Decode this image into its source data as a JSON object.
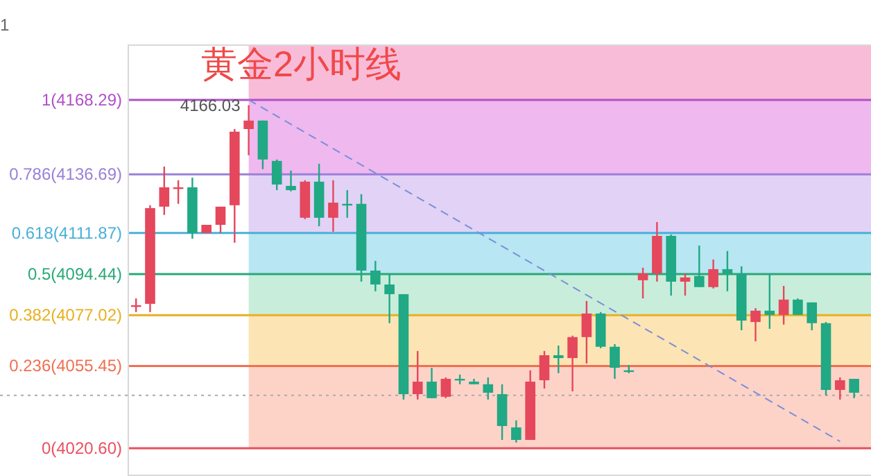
{
  "chart_data": {
    "type": "candlestick",
    "title": "黄金2小时线",
    "categories": [
      null,
      null,
      null,
      null,
      null,
      null,
      null,
      null,
      null,
      null,
      null,
      null,
      null,
      null,
      null,
      null,
      null,
      null,
      null,
      null,
      null,
      null,
      null,
      null,
      null,
      null,
      null,
      null,
      null,
      null,
      null,
      null,
      null,
      null,
      null,
      null,
      null,
      null,
      null,
      null,
      null,
      null,
      null,
      null,
      null,
      null,
      null,
      null,
      null,
      null,
      null,
      null
    ],
    "ohlc": [
      [
        4081.2,
        4084.1,
        4078.3,
        4081.2
      ],
      [
        4081.8,
        4123.6,
        4078.3,
        4122.4
      ],
      [
        4123.0,
        4140.0,
        4119.5,
        4131.2
      ],
      [
        4131.2,
        4134.2,
        4124.2,
        4131.2
      ],
      [
        4131.2,
        4135.3,
        4109.4,
        4111.8
      ],
      [
        4111.8,
        4115.3,
        4111.8,
        4115.3
      ],
      [
        4115.3,
        4123.0,
        4111.8,
        4123.0
      ],
      [
        4123.6,
        4155.9,
        4107.7,
        4154.8
      ],
      [
        4155.9,
        4166.03,
        4144.8,
        4159.5
      ],
      [
        4159.5,
        4159.5,
        4138.9,
        4143.0
      ],
      [
        4142.4,
        4143.0,
        4130.0,
        4132.4
      ],
      [
        4131.8,
        4138.3,
        4129.5,
        4130.0
      ],
      [
        4118.3,
        4134.2,
        4117.7,
        4133.6
      ],
      [
        4133.6,
        4141.2,
        4114.7,
        4118.3
      ],
      [
        4118.3,
        4134.2,
        4112.4,
        4124.7
      ],
      [
        4124.2,
        4130.0,
        4118.3,
        4124.2
      ],
      [
        4124.2,
        4128.3,
        4091.2,
        4095.9
      ],
      [
        4095.9,
        4100.0,
        4087.1,
        4090.0
      ],
      [
        4090.0,
        4094.7,
        4073.6,
        4085.9
      ],
      [
        4085.9,
        4085.9,
        4041.2,
        4043.5
      ],
      [
        4043.5,
        4061.8,
        4041.2,
        4048.8
      ],
      [
        4048.8,
        4054.7,
        4041.8,
        4041.8
      ],
      [
        4042.4,
        4050.6,
        4041.8,
        4050.0
      ],
      [
        4050.0,
        4051.8,
        4047.7,
        4050.0
      ],
      [
        4048.8,
        4050.0,
        4047.7,
        4047.7
      ],
      [
        4047.7,
        4050.6,
        4041.2,
        4044.1
      ],
      [
        4043.5,
        4047.7,
        4024.1,
        4030.0
      ],
      [
        4029.4,
        4032.4,
        4023.0,
        4024.1
      ],
      [
        4024.1,
        4053.6,
        4024.1,
        4048.8
      ],
      [
        4049.4,
        4061.8,
        4045.9,
        4060.0
      ],
      [
        4060.0,
        4064.1,
        4052.4,
        4058.8
      ],
      [
        4058.8,
        4068.3,
        4044.7,
        4067.7
      ],
      [
        4067.7,
        4083.0,
        4056.5,
        4077.7
      ],
      [
        4077.7,
        4078.3,
        4063.0,
        4063.6
      ],
      [
        4063.6,
        4064.7,
        4050.0,
        4054.7
      ],
      [
        4053.6,
        4055.9,
        4052.4,
        4053.6
      ],
      [
        4091.8,
        4097.1,
        4084.1,
        4094.7
      ],
      [
        4094.7,
        4116.5,
        4091.2,
        4110.6
      ],
      [
        4110.6,
        4111.2,
        4085.3,
        4091.2
      ],
      [
        4091.2,
        4094.7,
        4085.3,
        4093.0
      ],
      [
        4093.6,
        4106.5,
        4088.9,
        4088.9
      ],
      [
        4088.9,
        4100.6,
        4088.3,
        4096.5
      ],
      [
        4096.5,
        4104.2,
        4087.1,
        4094.7
      ],
      [
        4094.7,
        4097.7,
        4070.6,
        4074.7
      ],
      [
        4074.1,
        4080.0,
        4065.9,
        4078.9
      ],
      [
        4078.9,
        4094.7,
        4071.2,
        4077.1
      ],
      [
        4077.1,
        4089.4,
        4073.0,
        4083.6
      ],
      [
        4083.6,
        4084.1,
        4077.1,
        4077.1
      ],
      [
        4082.4,
        4082.4,
        4070.6,
        4073.6
      ],
      [
        4073.6,
        4074.1,
        4043.0,
        4045.3
      ],
      [
        4045.3,
        4050.6,
        4041.2,
        4049.4
      ],
      [
        4050.0,
        4050.0,
        4041.8,
        4044.1
      ]
    ],
    "colors": [
      "#e5475c",
      "#e5475c",
      "#e5475c",
      "#e5475c",
      "#21a884",
      "#e5475c",
      "#e5475c",
      "#e5475c",
      "#e5475c",
      "#21a884",
      "#21a884",
      "#21a884",
      "#e5475c",
      "#21a884",
      "#e5475c",
      "#21a884",
      "#21a884",
      "#21a884",
      "#21a884",
      "#21a884",
      "#e5475c",
      "#21a884",
      "#e5475c",
      "#21a884",
      "#21a884",
      "#21a884",
      "#21a884",
      "#21a884",
      "#e5475c",
      "#e5475c",
      "#21a884",
      "#e5475c",
      "#e5475c",
      "#21a884",
      "#21a884",
      "#21a884",
      "#e5475c",
      "#e5475c",
      "#21a884",
      "#e5475c",
      "#21a884",
      "#e5475c",
      "#21a884",
      "#21a884",
      "#e5475c",
      "#21a884",
      "#e5475c",
      "#21a884",
      "#21a884",
      "#21a884",
      "#e5475c",
      "#21a884"
    ],
    "series": [
      {
        "type": "line",
        "values": [
          null,
          null,
          null,
          null,
          null,
          null,
          null,
          null,
          4168.29,
          null,
          null,
          null,
          null,
          null,
          null,
          null,
          null,
          null,
          null,
          null,
          null,
          null,
          null,
          null,
          null,
          null,
          null,
          null,
          null,
          null,
          null,
          null,
          null,
          null,
          null,
          null,
          null,
          null,
          null,
          null,
          null,
          null,
          null,
          null,
          null,
          null,
          null,
          null,
          null,
          null,
          4023.5,
          null
        ],
        "color": "#7b8fd8",
        "line_style": "dashed"
      }
    ],
    "ylim": [
      4008.8,
      4191.8
    ],
    "tick_labels": false,
    "ref_lines": [
      {
        "axis": "y",
        "value": 4168.29,
        "label": "1(4168.29)",
        "color": "#b050c8"
      },
      {
        "axis": "y",
        "value": 4136.69,
        "label": "0.786(4136.69)",
        "color": "#9a80d8"
      },
      {
        "axis": "y",
        "value": 4111.87,
        "label": "0.618(4111.87)",
        "color": "#4ab0d8"
      },
      {
        "axis": "y",
        "value": 4094.44,
        "label": "0.5(4094.44)",
        "color": "#2aa878"
      },
      {
        "axis": "y",
        "value": 4077.02,
        "label": "0.382(4077.02)",
        "color": "#e8b020"
      },
      {
        "axis": "y",
        "value": 4055.45,
        "label": "0.236(4055.45)",
        "color": "#f07050"
      },
      {
        "axis": "y",
        "value": 4020.6,
        "label": "0(4020.60)",
        "color": "#e85060"
      },
      {
        "axis": "y",
        "value": 4043.0,
        "color": "#aaaaaa",
        "line_style": "dotted"
      }
    ],
    "bands": [
      {
        "axis": "y",
        "from": 4168.29,
        "to": 4191.8,
        "color": "#f8bcd8"
      },
      {
        "axis": "y",
        "from": 4136.69,
        "to": 4168.29,
        "color": "#efb8ef"
      },
      {
        "axis": "y",
        "from": 4111.87,
        "to": 4136.69,
        "color": "#e2d2f6"
      },
      {
        "axis": "y",
        "from": 4094.44,
        "to": 4111.87,
        "color": "#b8e6f2"
      },
      {
        "axis": "y",
        "from": 4077.02,
        "to": 4094.44,
        "color": "#c8eedb"
      },
      {
        "axis": "y",
        "from": 4055.45,
        "to": 4077.02,
        "color": "#fde4b4"
      },
      {
        "axis": "y",
        "from": 4020.6,
        "to": 4055.45,
        "color": "#fdd3c8"
      }
    ],
    "annotations": [
      "4166.03",
      "1"
    ]
  }
}
